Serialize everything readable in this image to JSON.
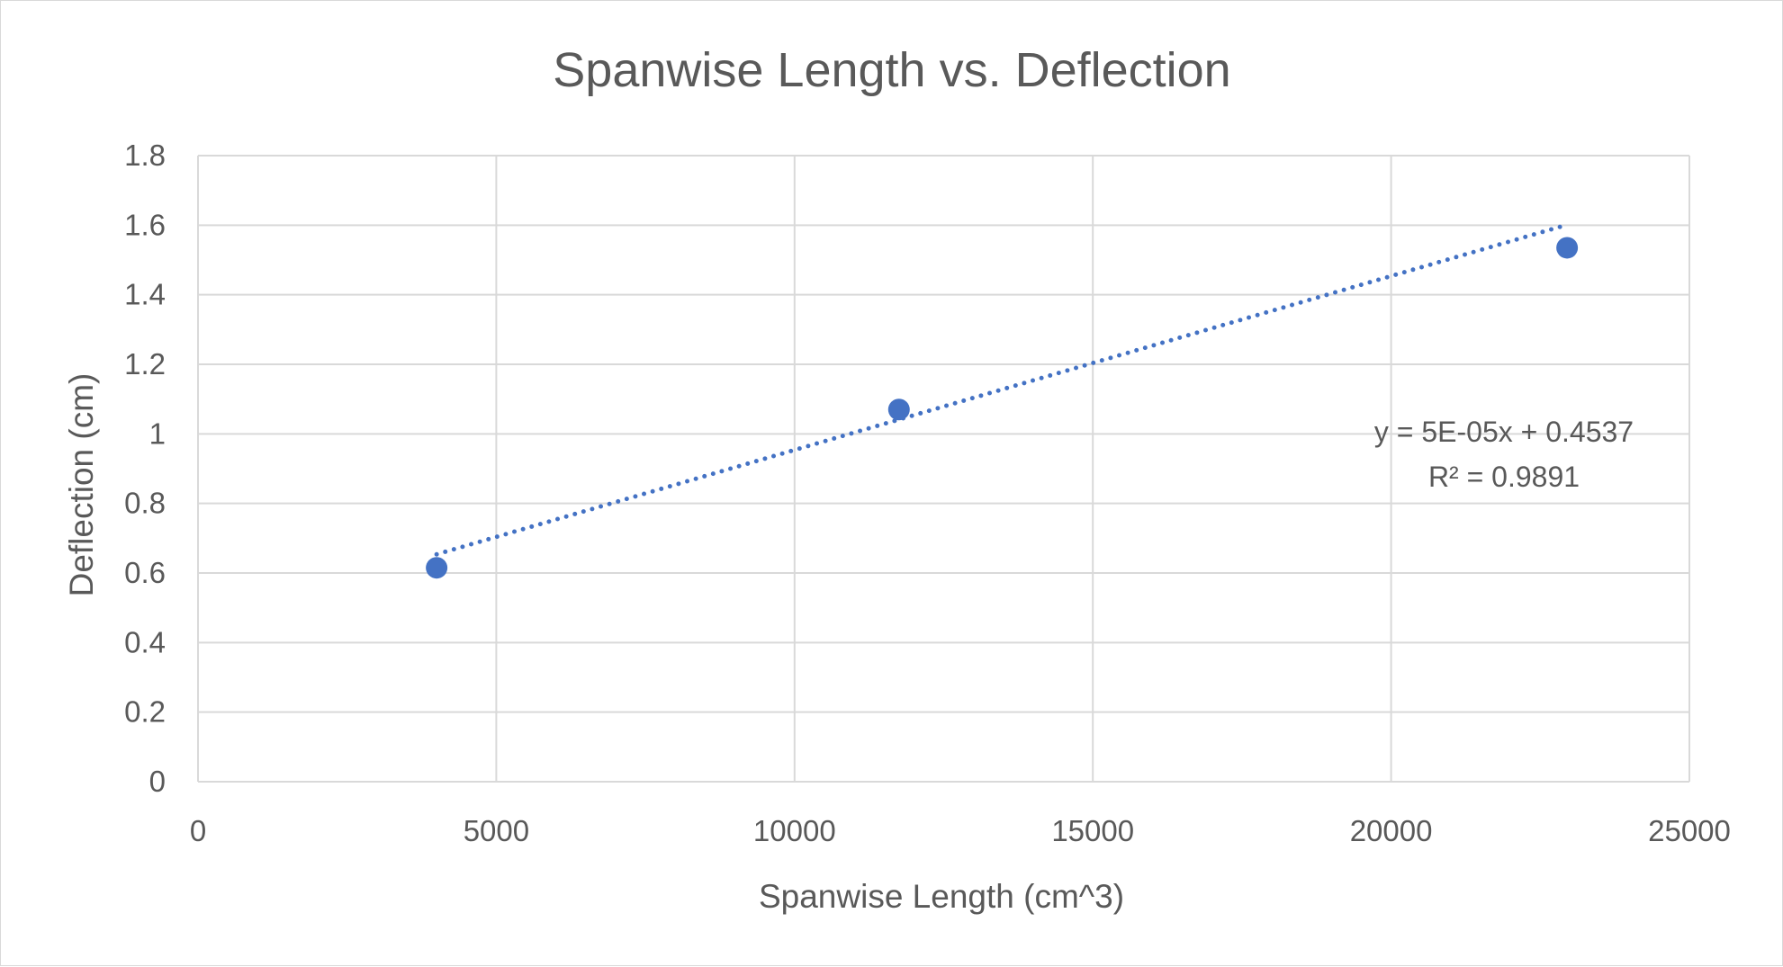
{
  "chart_data": {
    "type": "scatter",
    "title": "Spanwise Length vs. Deflection",
    "xlabel": "Spanwise Length (cm^3)",
    "ylabel": "Deflection (cm)",
    "xlim": [
      0,
      25000
    ],
    "ylim": [
      0,
      1.8
    ],
    "x_ticks": [
      "0",
      "5000",
      "10000",
      "15000",
      "20000",
      "25000"
    ],
    "y_ticks": [
      "0",
      "0.2",
      "0.4",
      "0.6",
      "0.8",
      "1",
      "1.2",
      "1.4",
      "1.6",
      "1.8"
    ],
    "grid": true,
    "legend": "none",
    "series": [
      {
        "points": [
          {
            "x": 4000,
            "y": 0.615
          },
          {
            "x": 11750,
            "y": 1.07
          },
          {
            "x": 22950,
            "y": 1.535
          }
        ],
        "color": "#4472C4"
      }
    ],
    "trendline": {
      "type": "linear",
      "style": "dotted",
      "color": "#4472C4",
      "slope": 5e-05,
      "intercept": 0.4537,
      "x_range": [
        4000,
        22950
      ],
      "equation_label": "y = 5E-05x + 0.4537",
      "r2_label": "R² = 0.9891"
    }
  }
}
